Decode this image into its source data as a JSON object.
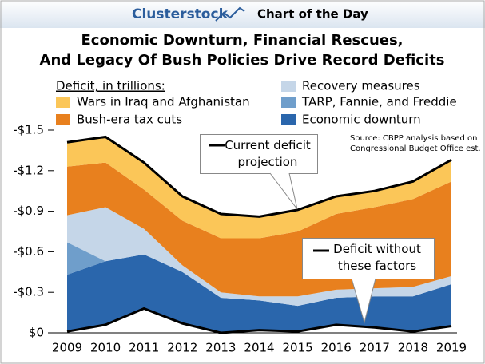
{
  "header": {
    "brand": "Clusterstock",
    "tagline": "Chart of the Day"
  },
  "chart_data": {
    "type": "stacked-area",
    "title": [
      "Economic Downturn, Financial Rescues,",
      "And Legacy Of Bush Policies Drive Record Deficits"
    ],
    "legend_title": "Deficit, in trillions:",
    "source": "Source: CBPP analysis based on Congressional Budget Office est.",
    "total_label": "Current deficit projection",
    "categories": [
      "2009",
      "2010",
      "2011",
      "2012",
      "2013",
      "2014",
      "2015",
      "2016",
      "2017",
      "2018",
      "2019"
    ],
    "base_line": {
      "name": "Deficit without these factors",
      "color": "#000000",
      "values": [
        -0.01,
        -0.06,
        -0.18,
        -0.07,
        0,
        -0.02,
        -0.01,
        -0.06,
        -0.04,
        -0.01,
        -0.05
      ]
    },
    "series": [
      {
        "name": "Economic downturn",
        "color": "#2a66ac",
        "values": [
          -0.42,
          -0.47,
          -0.4,
          -0.38,
          -0.26,
          -0.22,
          -0.19,
          -0.2,
          -0.23,
          -0.26,
          -0.31
        ]
      },
      {
        "name": "TARP, Fannie, and Freddie",
        "color": "#6f9ecb",
        "values": [
          -0.24,
          0,
          0,
          0,
          0,
          0,
          0,
          0,
          0,
          0,
          0
        ]
      },
      {
        "name": "Recovery measures",
        "color": "#c5d6e8",
        "values": [
          -0.2,
          -0.4,
          -0.19,
          -0.05,
          -0.04,
          -0.03,
          -0.07,
          -0.06,
          -0.06,
          -0.07,
          -0.06
        ]
      },
      {
        "name": "Bush-era tax cuts",
        "color": "#e8801e",
        "values": [
          -0.36,
          -0.33,
          -0.29,
          -0.33,
          -0.4,
          -0.43,
          -0.48,
          -0.56,
          -0.6,
          -0.65,
          -0.7
        ]
      },
      {
        "name": "Wars in Iraq and Afghanistan",
        "color": "#fbc658",
        "values": [
          -0.18,
          -0.19,
          -0.2,
          -0.18,
          -0.18,
          -0.16,
          -0.16,
          -0.13,
          -0.12,
          -0.13,
          -0.16
        ]
      }
    ],
    "ylim": [
      0,
      -1.5
    ],
    "yticks": [
      {
        "value": 0,
        "label": "$0"
      },
      {
        "value": -0.3,
        "label": "-$0.3"
      },
      {
        "value": -0.6,
        "label": "-$0.6"
      },
      {
        "value": -0.9,
        "label": "-$0.9"
      },
      {
        "value": -1.2,
        "label": "-$1.2"
      },
      {
        "value": -1.5,
        "label": "-$1.5"
      }
    ]
  }
}
